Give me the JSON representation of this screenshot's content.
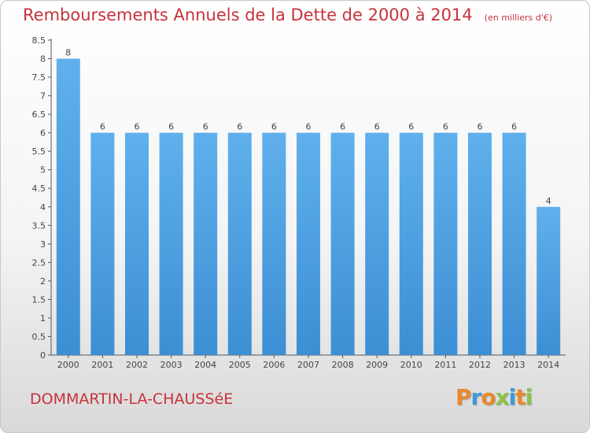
{
  "title": "Remboursements Annuels de la Dette de 2000 à 2014",
  "subtitle": "(en milliers d'€)",
  "commune": "DOMMARTIN-LA-CHAUSSéE",
  "logo": {
    "text": "Proxiti",
    "colors": [
      "#e8892b",
      "#3a9ad9",
      "#e8892b",
      "#8bc34a",
      "#3a9ad9",
      "#e8892b",
      "#8bc34a"
    ]
  },
  "colors": {
    "title": "#c8323c",
    "bar": "#3d8fd4",
    "bar_light": "#5fb0ec",
    "axis": "#555555"
  },
  "chart_data": {
    "type": "bar",
    "categories": [
      "2000",
      "2001",
      "2002",
      "2003",
      "2004",
      "2005",
      "2006",
      "2007",
      "2008",
      "2009",
      "2010",
      "2011",
      "2012",
      "2013",
      "2014"
    ],
    "values": [
      8,
      6,
      6,
      6,
      6,
      6,
      6,
      6,
      6,
      6,
      6,
      6,
      6,
      6,
      4
    ],
    "data_labels": [
      "8",
      "6",
      "6",
      "6",
      "6",
      "6",
      "6",
      "6",
      "6",
      "6",
      "6",
      "6",
      "6",
      "6",
      "4"
    ],
    "yticks": [
      "0",
      "0.5",
      "1",
      "1.5",
      "2",
      "2.5",
      "3",
      "3.5",
      "4",
      "4.5",
      "5",
      "5.5",
      "6",
      "6.5",
      "7",
      "7.5",
      "8",
      "8.5"
    ],
    "ylim": [
      0,
      8.5
    ],
    "title": "Remboursements Annuels de la Dette de 2000 à 2014",
    "xlabel": "",
    "ylabel": ""
  }
}
